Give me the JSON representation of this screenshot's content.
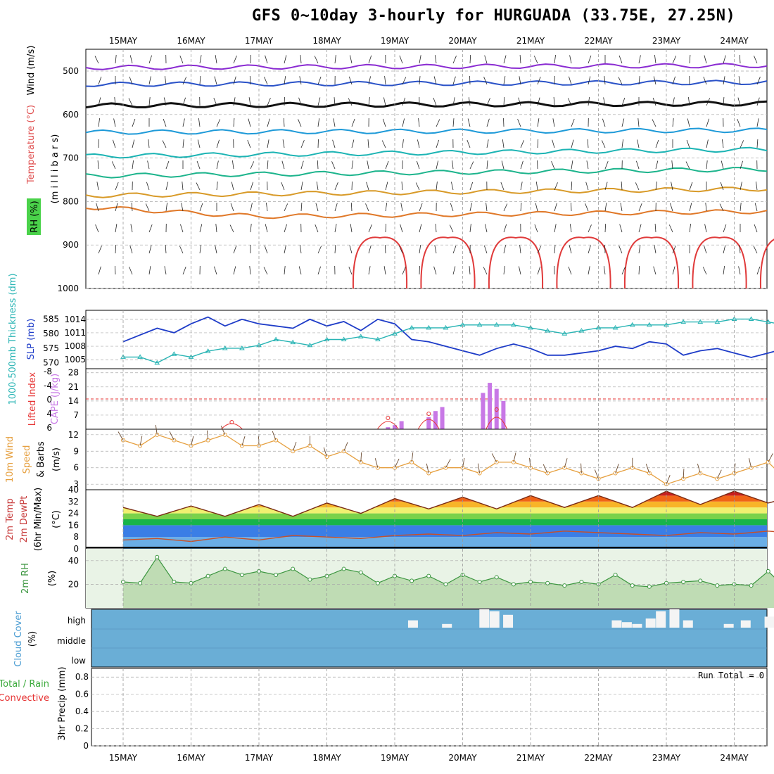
{
  "title": "GFS 0~10day 3-hourly for HURGUADA (33.75E, 27.25N)",
  "days": [
    "15MAY",
    "16MAY",
    "17MAY",
    "18MAY",
    "19MAY",
    "20MAY",
    "21MAY",
    "22MAY",
    "23MAY",
    "24MAY"
  ],
  "panels": {
    "upper": {
      "ylabel_wind": "Wind (m/s)",
      "ylabel_temp": "Temperature (°C)",
      "ylabel_rh": "RH (%)",
      "ylabel_units": "(m i l l i b a r s)",
      "yticks": [
        "500",
        "600",
        "700",
        "800",
        "900",
        "1000"
      ]
    },
    "slp": {
      "ylabel_thick": "1000-500mb Thickness (dm)",
      "ylabel_slp": "SLP (mb)",
      "yticks_left": [
        "585",
        "580",
        "575",
        "570"
      ],
      "yticks_right": [
        "1014",
        "1011",
        "1008",
        "1005"
      ]
    },
    "cape": {
      "ylabel_li": "Lifted Index",
      "ylabel_cape": "CAPE (J/kg)",
      "yticks_left": [
        "-8",
        "-4",
        "0",
        "4",
        "6"
      ],
      "yticks_right": [
        "28",
        "21",
        "14",
        "7"
      ]
    },
    "wind10": {
      "ylabel_a": "10m Wind",
      "ylabel_b": "Speed",
      "ylabel_c": "& Barbs",
      "ylabel_units": "(m/s)",
      "yticks": [
        "12",
        "9",
        "6",
        "3"
      ]
    },
    "temp2m": {
      "ylabel_a": "2m Temp",
      "ylabel_b": "2m DewPt",
      "ylabel_c": "(6hr Min/Max)",
      "ylabel_units": "(°C)",
      "yticks": [
        "40",
        "32",
        "24",
        "16",
        "8",
        "0"
      ]
    },
    "rh2m": {
      "ylabel": "2m RH",
      "ylabel_units": "(%)",
      "yticks": [
        "40",
        "20"
      ]
    },
    "cloud": {
      "ylabel": "Cloud Cover",
      "ylabel_units": "(%)",
      "levels": [
        "high",
        "middle",
        "low"
      ]
    },
    "precip": {
      "ylabel_a": "Total / Rain",
      "ylabel_b": "Convective",
      "ylabel_units": "3hr Precip (mm)",
      "yticks": [
        "0.8",
        "0.6",
        "0.4",
        "0.2",
        "0"
      ],
      "run_total": "Run Total = 0"
    }
  },
  "colors": {
    "slp": "#1e3cc8",
    "thickness": "#28b4b4",
    "cape": "#c878e6",
    "lifted_index": "#e63232",
    "wind_speed": "#e6a040",
    "dewpoint": "#c85028",
    "rh": "#3c9640",
    "cloud_bg": "#6aaed6"
  },
  "chart_data": [
    {
      "type": "line",
      "title": "SLP (mb)",
      "ylim": [
        1003,
        1016
      ],
      "x": [
        0.0,
        0.25,
        0.5,
        0.75,
        1.0,
        1.25,
        1.5,
        1.75,
        2.0,
        2.25,
        2.5,
        2.75,
        3.0,
        3.25,
        3.5,
        3.75,
        4.0,
        4.25,
        4.5,
        4.75,
        5.0,
        5.25,
        5.5,
        5.75,
        6.0,
        6.25,
        6.5,
        6.75,
        7.0,
        7.25,
        7.5,
        7.75,
        8.0,
        8.25,
        8.5,
        8.75,
        9.0,
        9.25,
        9.5,
        9.75
      ],
      "series": [
        {
          "name": "SLP",
          "values": [
            1009,
            1010.5,
            1012,
            1011,
            1013,
            1014.5,
            1012.5,
            1014,
            1013,
            1012.5,
            1012,
            1014,
            1012.5,
            1013.5,
            1011.5,
            1014,
            1013,
            1009.5,
            1009,
            1008,
            1007,
            1006,
            1007.5,
            1008.5,
            1007.5,
            1006,
            1006,
            1006.5,
            1007,
            1008,
            1007.5,
            1009,
            1008.5,
            1006,
            1007,
            1007.5,
            1006.5,
            1005.5,
            1006.5,
            1007.5
          ]
        },
        {
          "name": "1000-500mb Thickness",
          "values": [
            572,
            572,
            570,
            573,
            572,
            574,
            575,
            575,
            576,
            578,
            577,
            576,
            578,
            578,
            579,
            578,
            580,
            582,
            582,
            582,
            583,
            583,
            583,
            583,
            582,
            581,
            580,
            581,
            582,
            582,
            583,
            583,
            583,
            584,
            584,
            584,
            585,
            585,
            584,
            583
          ]
        }
      ]
    },
    {
      "type": "bar",
      "title": "CAPE (J/kg)",
      "ylim": [
        0,
        30
      ],
      "x": [
        3.9,
        4.0,
        4.1,
        4.5,
        4.6,
        4.7,
        5.3,
        5.4,
        5.5,
        5.6
      ],
      "values": [
        1,
        2,
        4,
        6,
        9,
        11,
        18,
        23,
        20,
        14
      ]
    },
    {
      "type": "line",
      "title": "Lifted Index",
      "ylim": [
        -10,
        6
      ],
      "x": [
        1.6,
        3.9,
        4.5,
        5.5
      ],
      "values": [
        5,
        3,
        1,
        -1
      ]
    },
    {
      "type": "line",
      "title": "10m Wind Speed",
      "ylim": [
        2,
        13
      ],
      "x": [
        0.0,
        0.25,
        0.5,
        0.75,
        1.0,
        1.25,
        1.5,
        1.75,
        2.0,
        2.25,
        2.5,
        2.75,
        3.0,
        3.25,
        3.5,
        3.75,
        4.0,
        4.25,
        4.5,
        4.75,
        5.0,
        5.25,
        5.5,
        5.75,
        6.0,
        6.25,
        6.5,
        6.75,
        7.0,
        7.25,
        7.5,
        7.75,
        8.0,
        8.25,
        8.5,
        8.75,
        9.0,
        9.25,
        9.5,
        9.75
      ],
      "values": [
        11,
        10,
        12,
        11,
        10,
        11,
        12,
        10,
        10,
        11,
        9,
        10,
        8,
        9,
        7,
        6,
        6,
        7,
        5,
        6,
        6,
        5,
        7,
        7,
        6,
        5,
        6,
        5,
        4,
        5,
        6,
        5,
        3,
        4,
        5,
        4,
        5,
        6,
        7,
        4
      ]
    },
    {
      "type": "area",
      "title": "2m Temp / 2m DewPt",
      "ylim": [
        0,
        40
      ],
      "x": [
        0.0,
        0.5,
        1.0,
        1.5,
        2.0,
        2.5,
        3.0,
        3.5,
        4.0,
        4.5,
        5.0,
        5.5,
        6.0,
        6.5,
        7.0,
        7.5,
        8.0,
        8.5,
        9.0,
        9.5,
        9.75
      ],
      "series": [
        {
          "name": "2m Temp",
          "values": [
            28,
            22,
            29,
            22,
            30,
            22,
            31,
            24,
            34,
            27,
            35,
            27,
            36,
            28,
            36,
            28,
            39,
            30,
            39,
            31,
            34
          ]
        },
        {
          "name": "2m DewPt",
          "values": [
            6,
            7,
            5,
            8,
            6,
            9,
            8,
            7,
            9,
            10,
            9,
            11,
            10,
            12,
            11,
            10,
            9,
            11,
            10,
            12,
            11
          ]
        }
      ]
    },
    {
      "type": "area",
      "title": "2m RH (%)",
      "ylim": [
        0,
        50
      ],
      "x": [
        0.0,
        0.25,
        0.5,
        0.75,
        1.0,
        1.25,
        1.5,
        1.75,
        2.0,
        2.25,
        2.5,
        2.75,
        3.0,
        3.25,
        3.5,
        3.75,
        4.0,
        4.25,
        4.5,
        4.75,
        5.0,
        5.25,
        5.5,
        5.75,
        6.0,
        6.25,
        6.5,
        6.75,
        7.0,
        7.25,
        7.5,
        7.75,
        8.0,
        8.25,
        8.5,
        8.75,
        9.0,
        9.25,
        9.5,
        9.75
      ],
      "values": [
        22,
        21,
        43,
        22,
        21,
        27,
        33,
        28,
        31,
        28,
        33,
        24,
        27,
        33,
        30,
        21,
        27,
        23,
        27,
        20,
        28,
        22,
        26,
        20,
        22,
        21,
        19,
        22,
        20,
        28,
        19,
        18,
        21,
        22,
        23,
        19,
        20,
        19,
        31,
        17
      ]
    }
  ]
}
